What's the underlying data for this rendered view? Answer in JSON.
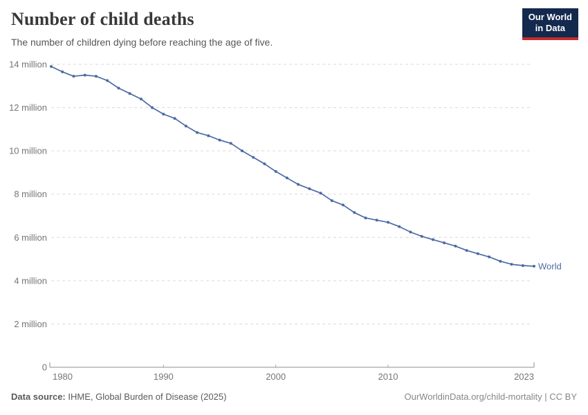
{
  "header": {
    "title": "Number of child deaths",
    "subtitle": "The number of children dying before reaching the age of five.",
    "logo": {
      "line1": "Our World",
      "line2": "in Data"
    }
  },
  "chart_data": {
    "type": "line",
    "title": "Number of child deaths",
    "xlabel": "",
    "ylabel": "",
    "unit": "million deaths",
    "x": [
      1980,
      1981,
      1982,
      1983,
      1984,
      1985,
      1986,
      1987,
      1988,
      1989,
      1990,
      1991,
      1992,
      1993,
      1994,
      1995,
      1996,
      1997,
      1998,
      1999,
      2000,
      2001,
      2002,
      2003,
      2004,
      2005,
      2006,
      2007,
      2008,
      2009,
      2010,
      2011,
      2012,
      2013,
      2014,
      2015,
      2016,
      2017,
      2018,
      2019,
      2020,
      2021,
      2022,
      2023
    ],
    "series": [
      {
        "name": "World",
        "values": [
          13.9,
          13.65,
          13.45,
          13.5,
          13.45,
          13.25,
          12.9,
          12.65,
          12.4,
          12.0,
          11.7,
          11.5,
          11.15,
          10.85,
          10.7,
          10.5,
          10.35,
          10.0,
          9.7,
          9.4,
          9.05,
          8.75,
          8.45,
          8.25,
          8.05,
          7.7,
          7.5,
          7.15,
          6.9,
          6.8,
          6.7,
          6.5,
          6.25,
          6.05,
          5.9,
          5.75,
          5.6,
          5.4,
          5.25,
          5.1,
          4.9,
          4.76,
          4.7,
          4.67
        ]
      }
    ],
    "xlim": [
      1980,
      2023
    ],
    "ylim": [
      0,
      14
    ],
    "x_ticks": [
      1980,
      1990,
      2000,
      2010,
      2023
    ],
    "y_ticks": [
      0,
      2,
      4,
      6,
      8,
      10,
      12,
      14
    ],
    "y_tick_labels": [
      "0",
      "2 million",
      "4 million",
      "6 million",
      "8 million",
      "10 million",
      "12 million",
      "14 million"
    ],
    "grid": "horizontal-dashed",
    "legend_position": "end-of-line-label",
    "markers": true
  },
  "footer": {
    "source_label": "Data source:",
    "source_text": " IHME, Global Burden of Disease (2025)",
    "link_text": "OurWorldinData.org/child-mortality | CC BY"
  },
  "colors": {
    "line": "#4c6aa4",
    "grid": "#dadada",
    "axis": "#8f8f8f",
    "tick-text": "#757575",
    "title": "#383838",
    "subtitle": "#565656",
    "footer-left": "#5a5a5a",
    "footer-right": "#878787",
    "logo-bg": "#13294e",
    "logo-red": "#c32e2e"
  }
}
